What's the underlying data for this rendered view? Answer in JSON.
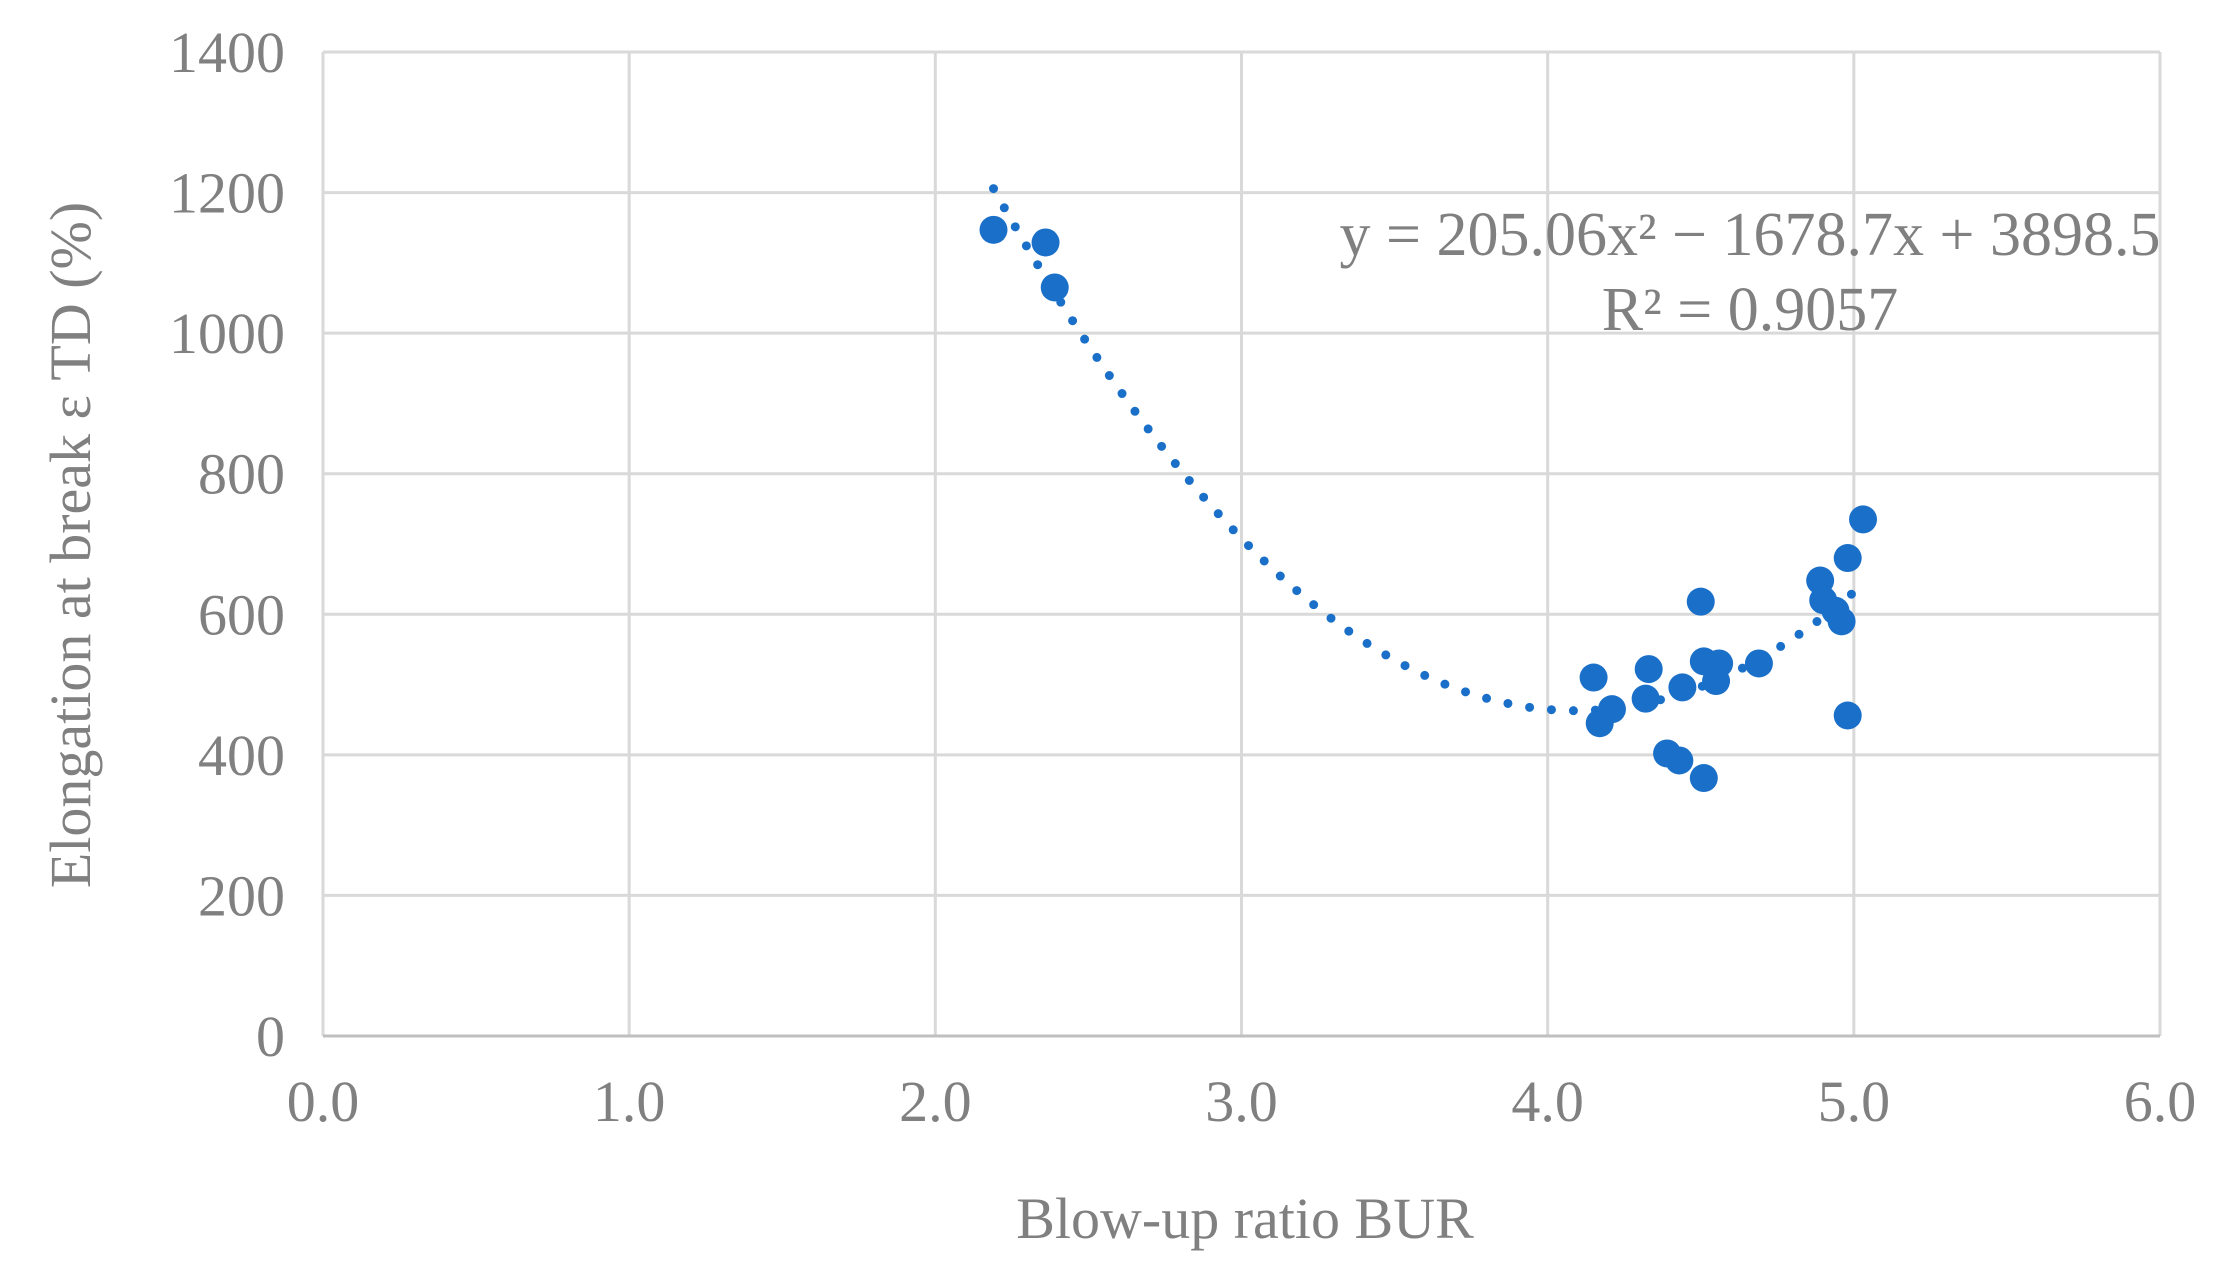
{
  "chart_data": {
    "type": "scatter",
    "xlabel": "Blow-up ratio BUR",
    "ylabel": "Elongation at break ε TD (%)",
    "xlim": [
      0,
      6
    ],
    "ylim": [
      0,
      1400
    ],
    "x_ticks": [
      "0.0",
      "1.0",
      "2.0",
      "3.0",
      "4.0",
      "5.0",
      "6.0"
    ],
    "y_ticks": [
      "0",
      "200",
      "400",
      "600",
      "800",
      "1000",
      "1200",
      "1400"
    ],
    "grid": true,
    "legend": "none",
    "series": [
      {
        "points": [
          [
            2.19,
            1147
          ],
          [
            2.36,
            1129
          ],
          [
            2.39,
            1065
          ],
          [
            4.15,
            510
          ],
          [
            4.17,
            445
          ],
          [
            4.21,
            465
          ],
          [
            4.32,
            480
          ],
          [
            4.33,
            522
          ],
          [
            4.39,
            402
          ],
          [
            4.43,
            392
          ],
          [
            4.44,
            496
          ],
          [
            4.5,
            618
          ],
          [
            4.51,
            533
          ],
          [
            4.51,
            367
          ],
          [
            4.55,
            528
          ],
          [
            4.55,
            505
          ],
          [
            4.56,
            530
          ],
          [
            4.69,
            530
          ],
          [
            4.89,
            648
          ],
          [
            4.9,
            620
          ],
          [
            4.94,
            605
          ],
          [
            4.96,
            590
          ],
          [
            4.98,
            680
          ],
          [
            4.98,
            456
          ],
          [
            5.03,
            735
          ]
        ]
      }
    ],
    "trendline": {
      "type": "polynomial",
      "order": 2,
      "coefficients": [
        205.06,
        -1678.7,
        3898.5
      ],
      "x_range": [
        2.19,
        5.03
      ],
      "style": "dotted"
    },
    "annotations": [
      "y = 205.06x² − 1678.7x + 3898.5",
      "R² = 0.9057"
    ],
    "colors": {
      "points": "#1a6fc9",
      "trendline": "#1a6fc9",
      "grid": "#d9d9d9",
      "text": "#808080"
    }
  }
}
